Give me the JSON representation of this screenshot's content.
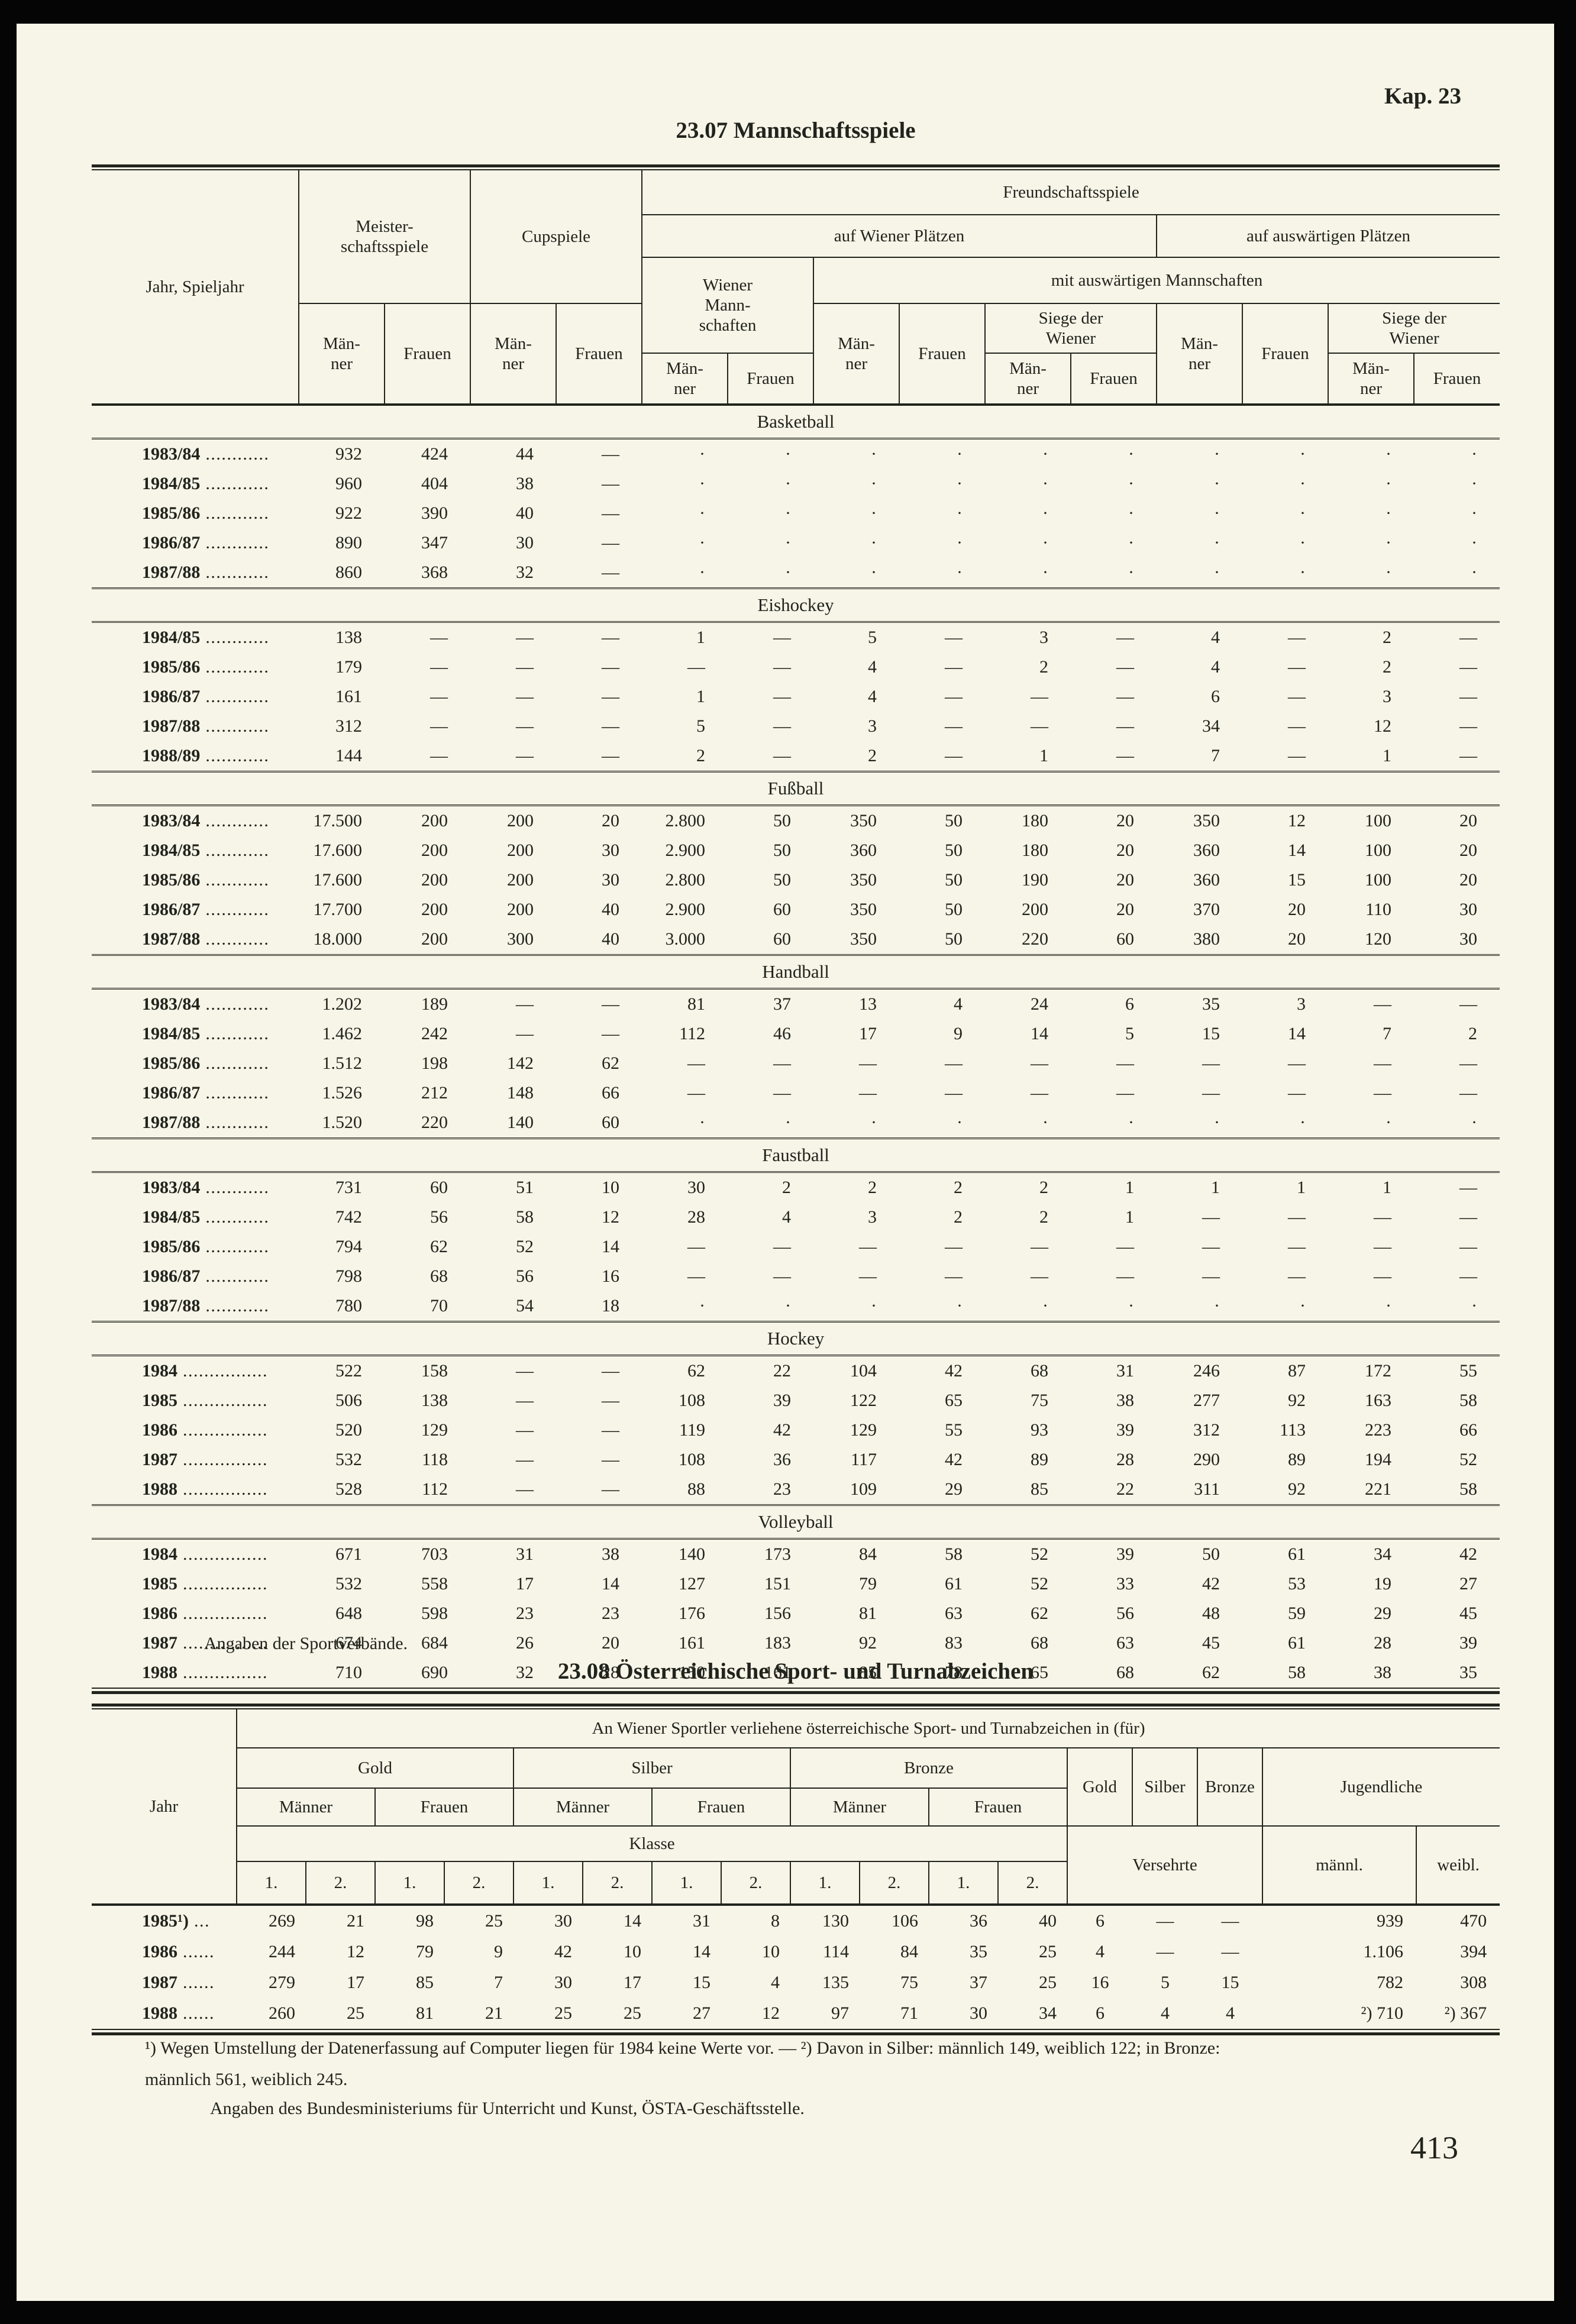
{
  "page": {
    "kap": "Kap. 23",
    "page_number": "413"
  },
  "table1": {
    "title": "23.07 Mannschaftsspiele",
    "header": {
      "jahr": "Jahr, Spieljahr",
      "meister": "Meister-\nschaftsspiele",
      "cup": "Cupspiele",
      "freund": "Freundschaftsspiele",
      "auf_wiener": "auf Wiener Plätzen",
      "auf_ausw": "auf auswärtigen Plätzen",
      "wiener_mann": "Wiener\nMann-\nschaften",
      "mit_ausw": "mit auswärtigen Mannschaften",
      "siege": "Siege der\nWiener",
      "maenner": "Män-\nner",
      "frauen": "Frauen"
    },
    "sections": [
      {
        "name": "Basketball",
        "rows": [
          {
            "label": "1983/84",
            "dots": "............",
            "values": [
              "932",
              "424",
              "44",
              "—",
              "·",
              "·",
              "·",
              "·",
              "·",
              "·",
              "·",
              "·",
              "·",
              "·"
            ]
          },
          {
            "label": "1984/85",
            "dots": "............",
            "values": [
              "960",
              "404",
              "38",
              "—",
              "·",
              "·",
              "·",
              "·",
              "·",
              "·",
              "·",
              "·",
              "·",
              "·"
            ]
          },
          {
            "label": "1985/86",
            "dots": "............",
            "values": [
              "922",
              "390",
              "40",
              "—",
              "·",
              "·",
              "·",
              "·",
              "·",
              "·",
              "·",
              "·",
              "·",
              "·"
            ]
          },
          {
            "label": "1986/87",
            "dots": "............",
            "values": [
              "890",
              "347",
              "30",
              "—",
              "·",
              "·",
              "·",
              "·",
              "·",
              "·",
              "·",
              "·",
              "·",
              "·"
            ]
          },
          {
            "label": "1987/88",
            "dots": "............",
            "values": [
              "860",
              "368",
              "32",
              "—",
              "·",
              "·",
              "·",
              "·",
              "·",
              "·",
              "·",
              "·",
              "·",
              "·"
            ]
          }
        ]
      },
      {
        "name": "Eishockey",
        "rows": [
          {
            "label": "1984/85",
            "dots": "............",
            "values": [
              "138",
              "—",
              "—",
              "—",
              "1",
              "—",
              "5",
              "—",
              "3",
              "—",
              "4",
              "—",
              "2",
              "—"
            ]
          },
          {
            "label": "1985/86",
            "dots": "............",
            "values": [
              "179",
              "—",
              "—",
              "—",
              "—",
              "—",
              "4",
              "—",
              "2",
              "—",
              "4",
              "—",
              "2",
              "—"
            ]
          },
          {
            "label": "1986/87",
            "dots": "............",
            "values": [
              "161",
              "—",
              "—",
              "—",
              "1",
              "—",
              "4",
              "—",
              "—",
              "—",
              "6",
              "—",
              "3",
              "—"
            ]
          },
          {
            "label": "1987/88",
            "dots": "............",
            "values": [
              "312",
              "—",
              "—",
              "—",
              "5",
              "—",
              "3",
              "—",
              "—",
              "—",
              "34",
              "—",
              "12",
              "—"
            ]
          },
          {
            "label": "1988/89",
            "dots": "............",
            "values": [
              "144",
              "—",
              "—",
              "—",
              "2",
              "—",
              "2",
              "—",
              "1",
              "—",
              "7",
              "—",
              "1",
              "—"
            ]
          }
        ]
      },
      {
        "name": "Fußball",
        "rows": [
          {
            "label": "1983/84",
            "dots": "............",
            "values": [
              "17.500",
              "200",
              "200",
              "20",
              "2.800",
              "50",
              "350",
              "50",
              "180",
              "20",
              "350",
              "12",
              "100",
              "20"
            ]
          },
          {
            "label": "1984/85",
            "dots": "............",
            "values": [
              "17.600",
              "200",
              "200",
              "30",
              "2.900",
              "50",
              "360",
              "50",
              "180",
              "20",
              "360",
              "14",
              "100",
              "20"
            ]
          },
          {
            "label": "1985/86",
            "dots": "............",
            "values": [
              "17.600",
              "200",
              "200",
              "30",
              "2.800",
              "50",
              "350",
              "50",
              "190",
              "20",
              "360",
              "15",
              "100",
              "20"
            ]
          },
          {
            "label": "1986/87",
            "dots": "............",
            "values": [
              "17.700",
              "200",
              "200",
              "40",
              "2.900",
              "60",
              "350",
              "50",
              "200",
              "20",
              "370",
              "20",
              "110",
              "30"
            ]
          },
          {
            "label": "1987/88",
            "dots": "............",
            "values": [
              "18.000",
              "200",
              "300",
              "40",
              "3.000",
              "60",
              "350",
              "50",
              "220",
              "60",
              "380",
              "20",
              "120",
              "30"
            ]
          }
        ]
      },
      {
        "name": "Handball",
        "rows": [
          {
            "label": "1983/84",
            "dots": "............",
            "values": [
              "1.202",
              "189",
              "—",
              "—",
              "81",
              "37",
              "13",
              "4",
              "24",
              "6",
              "35",
              "3",
              "—",
              "—"
            ]
          },
          {
            "label": "1984/85",
            "dots": "............",
            "values": [
              "1.462",
              "242",
              "—",
              "—",
              "112",
              "46",
              "17",
              "9",
              "14",
              "5",
              "15",
              "14",
              "7",
              "2"
            ]
          },
          {
            "label": "1985/86",
            "dots": "............",
            "values": [
              "1.512",
              "198",
              "142",
              "62",
              "—",
              "—",
              "—",
              "—",
              "—",
              "—",
              "—",
              "—",
              "—",
              "—"
            ]
          },
          {
            "label": "1986/87",
            "dots": "............",
            "values": [
              "1.526",
              "212",
              "148",
              "66",
              "—",
              "—",
              "—",
              "—",
              "—",
              "—",
              "—",
              "—",
              "—",
              "—"
            ]
          },
          {
            "label": "1987/88",
            "dots": "............",
            "values": [
              "1.520",
              "220",
              "140",
              "60",
              "·",
              "·",
              "·",
              "·",
              "·",
              "·",
              "·",
              "·",
              "·",
              "·"
            ]
          }
        ]
      },
      {
        "name": "Faustball",
        "rows": [
          {
            "label": "1983/84",
            "dots": "............",
            "values": [
              "731",
              "60",
              "51",
              "10",
              "30",
              "2",
              "2",
              "2",
              "2",
              "1",
              "1",
              "1",
              "1",
              "—"
            ]
          },
          {
            "label": "1984/85",
            "dots": "............",
            "values": [
              "742",
              "56",
              "58",
              "12",
              "28",
              "4",
              "3",
              "2",
              "2",
              "1",
              "—",
              "—",
              "—",
              "—"
            ]
          },
          {
            "label": "1985/86",
            "dots": "............",
            "values": [
              "794",
              "62",
              "52",
              "14",
              "—",
              "—",
              "—",
              "—",
              "—",
              "—",
              "—",
              "—",
              "—",
              "—"
            ]
          },
          {
            "label": "1986/87",
            "dots": "............",
            "values": [
              "798",
              "68",
              "56",
              "16",
              "—",
              "—",
              "—",
              "—",
              "—",
              "—",
              "—",
              "—",
              "—",
              "—"
            ]
          },
          {
            "label": "1987/88",
            "dots": "............",
            "values": [
              "780",
              "70",
              "54",
              "18",
              "·",
              "·",
              "·",
              "·",
              "·",
              "·",
              "·",
              "·",
              "·",
              "·"
            ]
          }
        ]
      },
      {
        "name": "Hockey",
        "rows": [
          {
            "label": "1984",
            "dots": "................",
            "values": [
              "522",
              "158",
              "—",
              "—",
              "62",
              "22",
              "104",
              "42",
              "68",
              "31",
              "246",
              "87",
              "172",
              "55"
            ]
          },
          {
            "label": "1985",
            "dots": "................",
            "values": [
              "506",
              "138",
              "—",
              "—",
              "108",
              "39",
              "122",
              "65",
              "75",
              "38",
              "277",
              "92",
              "163",
              "58"
            ]
          },
          {
            "label": "1986",
            "dots": "................",
            "values": [
              "520",
              "129",
              "—",
              "—",
              "119",
              "42",
              "129",
              "55",
              "93",
              "39",
              "312",
              "113",
              "223",
              "66"
            ]
          },
          {
            "label": "1987",
            "dots": "................",
            "values": [
              "532",
              "118",
              "—",
              "—",
              "108",
              "36",
              "117",
              "42",
              "89",
              "28",
              "290",
              "89",
              "194",
              "52"
            ]
          },
          {
            "label": "1988",
            "dots": "................",
            "values": [
              "528",
              "112",
              "—",
              "—",
              "88",
              "23",
              "109",
              "29",
              "85",
              "22",
              "311",
              "92",
              "221",
              "58"
            ]
          }
        ]
      },
      {
        "name": "Volleyball",
        "rows": [
          {
            "label": "1984",
            "dots": "................",
            "values": [
              "671",
              "703",
              "31",
              "38",
              "140",
              "173",
              "84",
              "58",
              "52",
              "39",
              "50",
              "61",
              "34",
              "42"
            ]
          },
          {
            "label": "1985",
            "dots": "................",
            "values": [
              "532",
              "558",
              "17",
              "14",
              "127",
              "151",
              "79",
              "61",
              "52",
              "33",
              "42",
              "53",
              "19",
              "27"
            ]
          },
          {
            "label": "1986",
            "dots": "................",
            "values": [
              "648",
              "598",
              "23",
              "23",
              "176",
              "156",
              "81",
              "63",
              "62",
              "56",
              "48",
              "59",
              "29",
              "45"
            ]
          },
          {
            "label": "1987",
            "dots": "................",
            "values": [
              "674",
              "684",
              "26",
              "20",
              "161",
              "183",
              "92",
              "83",
              "68",
              "63",
              "45",
              "61",
              "28",
              "39"
            ]
          },
          {
            "label": "1988",
            "dots": "................",
            "values": [
              "710",
              "690",
              "32",
              "28",
              "150",
              "161",
              "85",
              "78",
              "65",
              "68",
              "62",
              "58",
              "38",
              "35"
            ]
          }
        ]
      }
    ],
    "source": "Angaben der Sportverbände."
  },
  "table2": {
    "title": "23.08 Österreichische Sport- und Turnabzeichen",
    "header": {
      "jahr": "Jahr",
      "span_title": "An Wiener Sportler verliehene österreichische Sport- und Turnabzeichen in (für)",
      "gold": "Gold",
      "silber": "Silber",
      "bronze": "Bronze",
      "maenner": "Männer",
      "frauen": "Frauen",
      "klasse": "Klasse",
      "k1": "1.",
      "k2": "2.",
      "versehrte": "Versehrte",
      "jugendliche": "Jugendliche",
      "maennl": "männl.",
      "weibl": "weibl."
    },
    "rows": [
      {
        "label": "1985¹)",
        "dots": " ...",
        "values": [
          "269",
          "21",
          "98",
          "25",
          "30",
          "14",
          "31",
          "8",
          "130",
          "106",
          "36",
          "40",
          "6",
          "—",
          "—",
          "939",
          "470"
        ]
      },
      {
        "label": "1986",
        "dots": " ......",
        "values": [
          "244",
          "12",
          "79",
          "9",
          "42",
          "10",
          "14",
          "10",
          "114",
          "84",
          "35",
          "25",
          "4",
          "—",
          "—",
          "1.106",
          "394"
        ]
      },
      {
        "label": "1987",
        "dots": " ......",
        "values": [
          "279",
          "17",
          "85",
          "7",
          "30",
          "17",
          "15",
          "4",
          "135",
          "75",
          "37",
          "25",
          "16",
          "5",
          "15",
          "782",
          "308"
        ]
      },
      {
        "label": "1988",
        "dots": " ......",
        "values": [
          "260",
          "25",
          "81",
          "21",
          "25",
          "25",
          "27",
          "12",
          "97",
          "71",
          "30",
          "34",
          "6",
          "4",
          "4",
          "²) 710",
          "²) 367"
        ]
      }
    ],
    "footnote_line1": "¹) Wegen Umstellung der Datenerfassung auf Computer liegen für 1984 keine Werte vor. — ²) Davon in Silber: männlich 149, weiblich 122; in Bronze:",
    "footnote_line2": "männlich 561, weiblich 245.",
    "source": "Angaben des Bundesministeriums für Unterricht und Kunst, ÖSTA-Geschäftsstelle."
  }
}
